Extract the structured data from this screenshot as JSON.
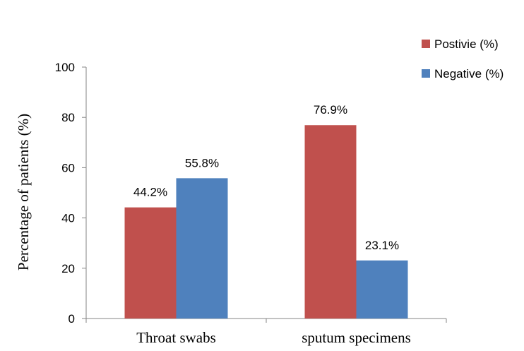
{
  "chart_data": {
    "type": "bar",
    "categories": [
      "Throat swabs",
      "sputum specimens"
    ],
    "series": [
      {
        "name": "Postivie (%)",
        "values": [
          44.2,
          76.9
        ],
        "labels": [
          "44.2%",
          "76.9%"
        ],
        "color": "#c0504d"
      },
      {
        "name": "Negative (%)",
        "values": [
          55.8,
          23.1
        ],
        "labels": [
          "55.8%",
          "23.1%"
        ],
        "color": "#4f81bd"
      }
    ],
    "ylabel": "Percentage of patients (%)",
    "xlabel": "",
    "ylim": [
      0,
      100
    ],
    "yticks": [
      0,
      20,
      40,
      60,
      80,
      100
    ],
    "grid": false,
    "legend": "top-right"
  }
}
